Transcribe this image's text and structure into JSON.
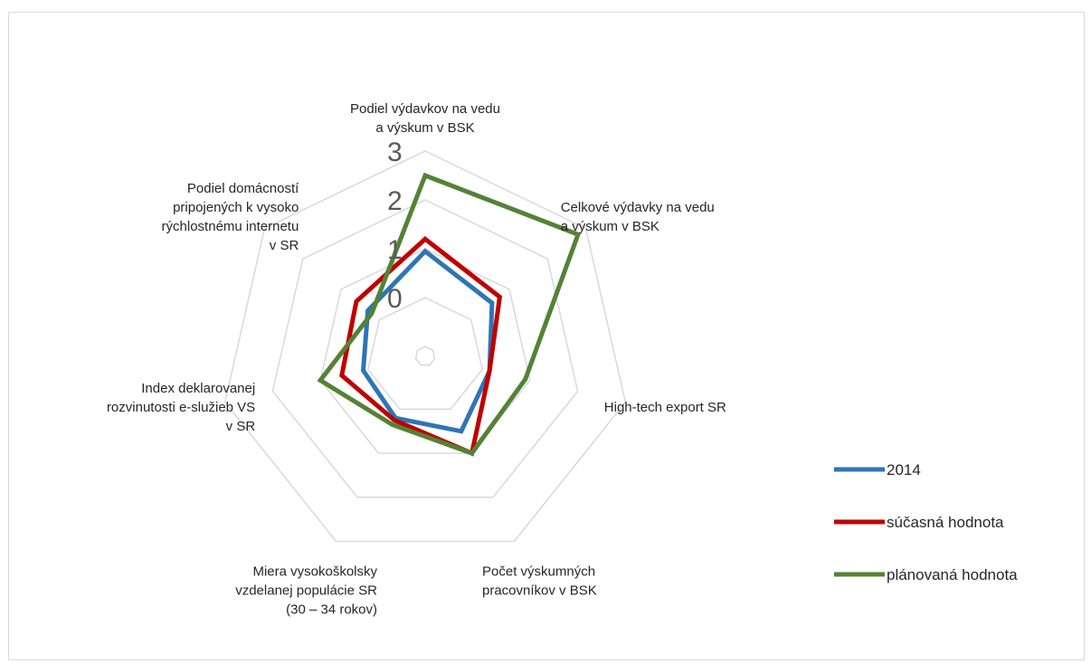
{
  "chart_data": {
    "type": "radar",
    "title": "",
    "categories": [
      [
        "Podiel výdavkov na vedu",
        "a výskum v BSK"
      ],
      [
        "Celkové výdavky na vedu",
        "a výskum v BSK"
      ],
      [
        "High-tech export SR"
      ],
      [
        "Počet výskumných",
        "pracovníkov v BSK"
      ],
      [
        "Miera vysokoškolsky",
        "vzdelanej populácie SR",
        "(30 – 34 rokov)"
      ],
      [
        "Index deklarovanej",
        "rozvinutosti e-služieb VS",
        "v SR"
      ],
      [
        "Podiel domácností",
        "pripojených k vysoko",
        "rýchlostnému internetu",
        "v SR"
      ]
    ],
    "r_ticks": [
      "0",
      "1",
      "2",
      "3"
    ],
    "r_range": [
      -1.2,
      3
    ],
    "grid": true,
    "legend_position": "right",
    "series": [
      {
        "name": "2014",
        "color": "#2e75b6",
        "values": [
          0.95,
          0.55,
          0.15,
          0.5,
          0.2,
          0.1,
          0.3
        ]
      },
      {
        "name": "súčasná hodnota",
        "color": "#c00000",
        "values": [
          1.2,
          0.75,
          0.15,
          1.0,
          0.25,
          0.55,
          0.6
        ]
      },
      {
        "name": "plánovaná hodnota",
        "color": "#548235",
        "values": [
          2.5,
          2.8,
          0.9,
          1.0,
          0.35,
          1.0,
          0.2
        ]
      }
    ]
  }
}
